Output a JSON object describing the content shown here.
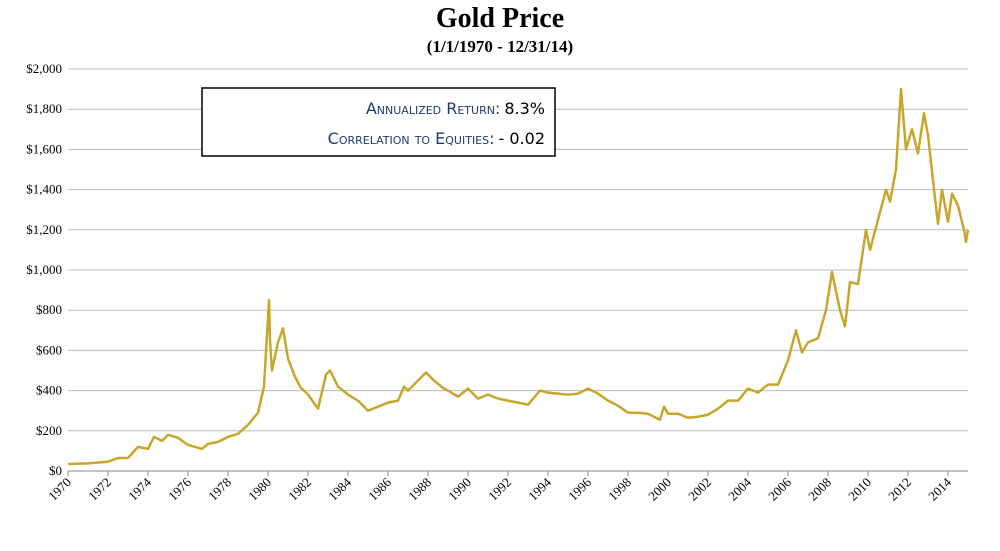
{
  "chart_data": {
    "type": "line",
    "title": "Gold Price",
    "subtitle": "(1/1/1970 - 12/31/14)",
    "annotations": [
      {
        "label": "Annualized Return:",
        "value": "8.3%"
      },
      {
        "label": "Correlation to Equities:",
        "value": "- 0.02"
      }
    ],
    "x": [
      1970,
      1971,
      1972,
      1972.5,
      1973,
      1973.5,
      1974,
      1974.3,
      1974.7,
      1975,
      1975.5,
      1976,
      1976.7,
      1977,
      1977.5,
      1978,
      1978.5,
      1979,
      1979.5,
      1979.8,
      1980.05,
      1980.1,
      1980.2,
      1980.5,
      1980.75,
      1981,
      1981.3,
      1981.6,
      1982,
      1982.5,
      1982.9,
      1983.1,
      1983.5,
      1984,
      1984.5,
      1985,
      1985.5,
      1986,
      1986.5,
      1986.8,
      1987,
      1987.5,
      1987.9,
      1988.3,
      1988.8,
      1989,
      1989.5,
      1990,
      1990.5,
      1991,
      1991.5,
      1992,
      1992.5,
      1993,
      1993.6,
      1994,
      1994.5,
      1995,
      1995.5,
      1996,
      1996.5,
      1997,
      1997.5,
      1998,
      1998.5,
      1999,
      1999.6,
      1999.8,
      2000,
      2000.5,
      2001,
      2001.5,
      2002,
      2002.5,
      2003,
      2003.5,
      2004,
      2004.5,
      2005,
      2005.5,
      2006,
      2006.4,
      2006.7,
      2007,
      2007.5,
      2007.9,
      2008.2,
      2008.6,
      2008.85,
      2009.1,
      2009.5,
      2009.9,
      2010.1,
      2010.5,
      2010.9,
      2011.1,
      2011.4,
      2011.65,
      2011.9,
      2012.2,
      2012.5,
      2012.8,
      2013,
      2013.3,
      2013.5,
      2013.7,
      2014,
      2014.2,
      2014.5,
      2014.8,
      2014.9,
      2015
    ],
    "series": [
      {
        "name": "Gold Price",
        "color": "#c8a62c",
        "values": [
          35,
          38,
          46,
          65,
          65,
          120,
          110,
          170,
          150,
          180,
          165,
          130,
          110,
          135,
          145,
          170,
          185,
          230,
          290,
          420,
          850,
          650,
          500,
          640,
          710,
          560,
          480,
          420,
          380,
          310,
          480,
          500,
          420,
          380,
          350,
          300,
          320,
          340,
          350,
          420,
          400,
          450,
          490,
          450,
          410,
          400,
          370,
          410,
          360,
          380,
          360,
          350,
          340,
          330,
          400,
          390,
          385,
          380,
          385,
          410,
          385,
          350,
          325,
          290,
          290,
          285,
          255,
          320,
          285,
          285,
          265,
          270,
          280,
          310,
          350,
          350,
          410,
          390,
          430,
          430,
          550,
          700,
          590,
          640,
          660,
          800,
          990,
          800,
          720,
          940,
          930,
          1200,
          1100,
          1250,
          1400,
          1340,
          1500,
          1900,
          1600,
          1700,
          1580,
          1780,
          1670,
          1400,
          1230,
          1400,
          1240,
          1380,
          1320,
          1200,
          1140,
          1200
        ]
      }
    ],
    "xlim": [
      1970,
      2015
    ],
    "xticks": [
      1970,
      1972,
      1974,
      1976,
      1978,
      1980,
      1982,
      1984,
      1986,
      1988,
      1990,
      1992,
      1994,
      1996,
      1998,
      2000,
      2002,
      2004,
      2006,
      2008,
      2010,
      2012,
      2014
    ],
    "ylim": [
      0,
      2000
    ],
    "yticks": [
      {
        "value": 0,
        "label": "$0"
      },
      {
        "value": 200,
        "label": "$200"
      },
      {
        "value": 400,
        "label": "$400"
      },
      {
        "value": 600,
        "label": "$600"
      },
      {
        "value": 800,
        "label": "$800"
      },
      {
        "value": 1000,
        "label": "$1,000"
      },
      {
        "value": 1200,
        "label": "$1,200"
      },
      {
        "value": 1400,
        "label": "$1,400"
      },
      {
        "value": 1600,
        "label": "$1,600"
      },
      {
        "value": 1800,
        "label": "$1,800"
      },
      {
        "value": 2000,
        "label": "$2,000"
      }
    ],
    "grid": true
  }
}
